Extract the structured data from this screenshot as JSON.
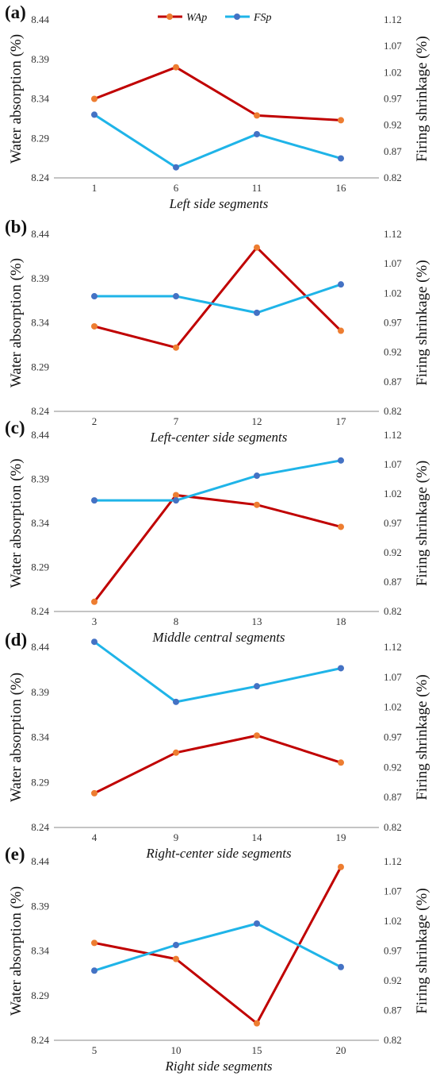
{
  "colors": {
    "wap_line": "#C00000",
    "wap_marker": "#ED7D31",
    "fsp_line": "#1FB4E8",
    "fsp_marker": "#4472C4",
    "axis": "#888888"
  },
  "chart_data": [
    {
      "type": "line",
      "panel_label": "(a)",
      "categories": [
        "1",
        "6",
        "11",
        "16"
      ],
      "xlabel": "Left side segments",
      "ylabel": "Water absorption (%)",
      "y2label": "Firing shrinkage (%)",
      "ylim": [
        8.24,
        8.44
      ],
      "y2lim": [
        0.82,
        1.12
      ],
      "yticks": [
        "8.24",
        "8.29",
        "8.34",
        "8.39",
        "8.44"
      ],
      "y2ticks": [
        "0.82",
        "0.87",
        "0.92",
        "0.97",
        "1.02",
        "1.07",
        "1.12"
      ],
      "legend": [
        "WAp",
        "FSp"
      ],
      "series": [
        {
          "name": "WAp",
          "axis": "left",
          "values": [
            8.34,
            8.38,
            8.319,
            8.313
          ]
        },
        {
          "name": "FSp",
          "axis": "right",
          "values": [
            0.94,
            0.84,
            0.903,
            0.857
          ]
        }
      ]
    },
    {
      "type": "line",
      "panel_label": "(b)",
      "categories": [
        "2",
        "7",
        "12",
        "17"
      ],
      "xlabel": "Left-center side segments",
      "ylabel": "Water absorption (%)",
      "y2label": "Firing shrinkage (%)",
      "ylim": [
        8.24,
        8.44
      ],
      "y2lim": [
        0.82,
        1.12
      ],
      "yticks": [
        "8.24",
        "8.29",
        "8.34",
        "8.39",
        "8.44"
      ],
      "y2ticks": [
        "0.82",
        "0.87",
        "0.92",
        "0.97",
        "1.02",
        "1.07",
        "1.12"
      ],
      "series": [
        {
          "name": "WAp",
          "axis": "left",
          "values": [
            8.336,
            8.312,
            8.425,
            8.331
          ]
        },
        {
          "name": "FSp",
          "axis": "right",
          "values": [
            1.015,
            1.015,
            0.987,
            1.035
          ]
        }
      ]
    },
    {
      "type": "line",
      "panel_label": "(c)",
      "categories": [
        "3",
        "8",
        "13",
        "18"
      ],
      "xlabel": "Middle central segments",
      "ylabel": "Water absorption (%)",
      "y2label": "Firing shrinkage (%)",
      "ylim": [
        8.24,
        8.44
      ],
      "y2lim": [
        0.82,
        1.12
      ],
      "yticks": [
        "8.24",
        "8.29",
        "8.34",
        "8.39",
        "8.44"
      ],
      "y2ticks": [
        "0.82",
        "0.87",
        "0.92",
        "0.97",
        "1.02",
        "1.07",
        "1.12"
      ],
      "series": [
        {
          "name": "WAp",
          "axis": "left",
          "values": [
            8.251,
            8.372,
            8.361,
            8.336
          ]
        },
        {
          "name": "FSp",
          "axis": "right",
          "values": [
            1.009,
            1.009,
            1.051,
            1.077
          ]
        }
      ]
    },
    {
      "type": "line",
      "panel_label": "(d)",
      "categories": [
        "4",
        "9",
        "14",
        "19"
      ],
      "xlabel": "Right-center side segments",
      "ylabel": "Water absorption (%)",
      "y2label": "Firing shrinkage (%)",
      "ylim": [
        8.24,
        8.44
      ],
      "y2lim": [
        0.82,
        1.12
      ],
      "yticks": [
        "8.24",
        "8.29",
        "8.34",
        "8.39",
        "8.44"
      ],
      "y2ticks": [
        "0.82",
        "0.87",
        "0.92",
        "0.97",
        "1.02",
        "1.07",
        "1.12"
      ],
      "series": [
        {
          "name": "WAp",
          "axis": "left",
          "values": [
            8.278,
            8.323,
            8.342,
            8.312
          ]
        },
        {
          "name": "FSp",
          "axis": "right",
          "values": [
            1.129,
            1.029,
            1.055,
            1.085
          ]
        }
      ]
    },
    {
      "type": "line",
      "panel_label": "(e)",
      "categories": [
        "5",
        "10",
        "15",
        "20"
      ],
      "xlabel": "Right side segments",
      "ylabel": "Water absorption (%)",
      "y2label": "Firing shrinkage (%)",
      "ylim": [
        8.24,
        8.44
      ],
      "y2lim": [
        0.82,
        1.12
      ],
      "yticks": [
        "8.24",
        "8.29",
        "8.34",
        "8.39",
        "8.44"
      ],
      "y2ticks": [
        "0.82",
        "0.87",
        "0.92",
        "0.97",
        "1.02",
        "1.07",
        "1.12"
      ],
      "series": [
        {
          "name": "WAp",
          "axis": "left",
          "values": [
            8.349,
            8.331,
            8.259,
            8.434
          ]
        },
        {
          "name": "FSp",
          "axis": "right",
          "values": [
            0.937,
            0.98,
            1.016,
            0.943
          ]
        }
      ]
    }
  ]
}
